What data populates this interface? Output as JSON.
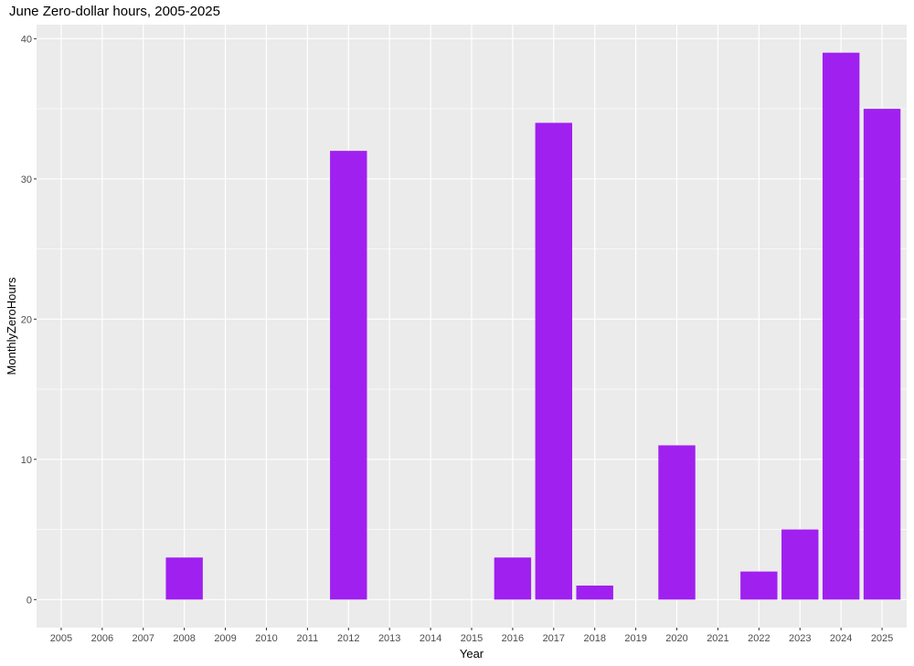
{
  "chart_data": {
    "type": "bar",
    "title": "June Zero-dollar hours, 2005-2025",
    "xlabel": "Year",
    "ylabel": "MonthlyZeroHours",
    "categories": [
      "2005",
      "2006",
      "2007",
      "2008",
      "2009",
      "2010",
      "2011",
      "2012",
      "2013",
      "2014",
      "2015",
      "2016",
      "2017",
      "2018",
      "2019",
      "2020",
      "2021",
      "2022",
      "2023",
      "2024",
      "2025"
    ],
    "values": [
      0,
      0,
      0,
      3,
      0,
      0,
      0,
      32,
      0,
      0,
      0,
      3,
      34,
      1,
      0,
      11,
      0,
      2,
      5,
      39,
      35
    ],
    "ylim": [
      -2,
      41
    ],
    "yticks": [
      0,
      10,
      20,
      30,
      40
    ],
    "grid": true,
    "bar_color": "#A020F0",
    "panel_color": "#EBEBEB",
    "grid_color": "#FFFFFF"
  }
}
